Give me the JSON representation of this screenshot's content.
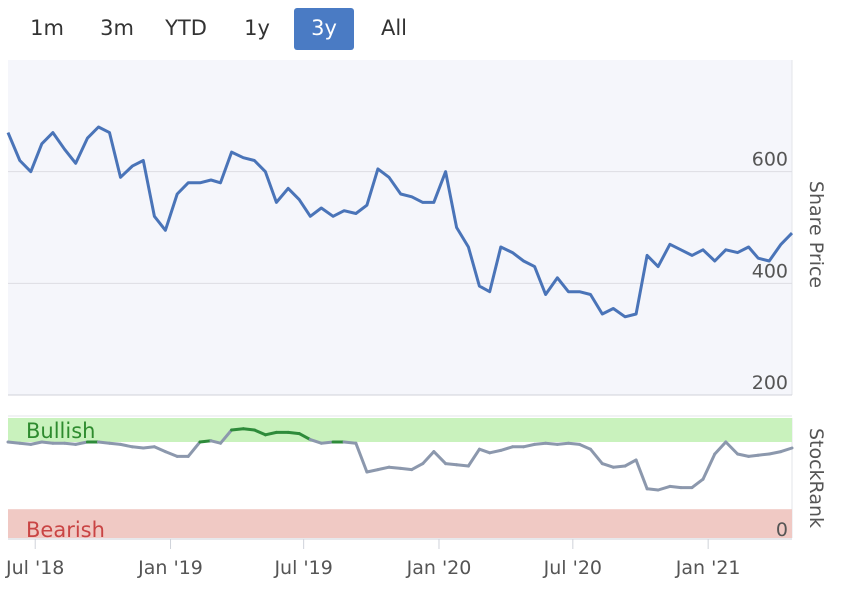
{
  "range_selector": {
    "buttons": [
      "1m",
      "3m",
      "YTD",
      "1y",
      "3y",
      "All"
    ],
    "active": "3y"
  },
  "colors": {
    "price_line": "#4a74b8",
    "bullish_fill": "#c9f2bd",
    "bearish_fill": "#f0c9c4",
    "bullish_text": "#2e8b2e",
    "bearish_text": "#c94444",
    "rank_line": "#8c98ad",
    "rank_bullish_line": "#2e8b3a",
    "plot_bg": "#f5f6fb",
    "grid": "#dcdde3"
  },
  "chart_data": [
    {
      "type": "line",
      "ylabel": "Share Price",
      "ylim": [
        200,
        800
      ],
      "yticks": [
        200,
        400,
        600
      ],
      "grid": true,
      "x": [
        "2018-05-25",
        "2018-06-10",
        "2018-06-25",
        "2018-07-10",
        "2018-07-25",
        "2018-08-10",
        "2018-08-25",
        "2018-09-10",
        "2018-09-25",
        "2018-10-10",
        "2018-10-25",
        "2018-11-10",
        "2018-11-25",
        "2018-12-10",
        "2018-12-25",
        "2019-01-10",
        "2019-01-25",
        "2019-02-10",
        "2019-02-25",
        "2019-03-10",
        "2019-03-25",
        "2019-04-10",
        "2019-04-25",
        "2019-05-10",
        "2019-05-25",
        "2019-06-10",
        "2019-06-25",
        "2019-07-10",
        "2019-07-25",
        "2019-08-10",
        "2019-08-25",
        "2019-09-10",
        "2019-09-25",
        "2019-10-10",
        "2019-10-25",
        "2019-11-10",
        "2019-11-25",
        "2019-12-10",
        "2019-12-25",
        "2020-01-10",
        "2020-01-25",
        "2020-02-10",
        "2020-02-25",
        "2020-03-10",
        "2020-03-25",
        "2020-04-10",
        "2020-04-25",
        "2020-05-10",
        "2020-05-25",
        "2020-06-10",
        "2020-06-25",
        "2020-07-10",
        "2020-07-25",
        "2020-08-10",
        "2020-08-25",
        "2020-09-10",
        "2020-09-25",
        "2020-10-10",
        "2020-10-25",
        "2020-11-10",
        "2020-11-25",
        "2020-12-10",
        "2020-12-25",
        "2021-01-10",
        "2021-01-25",
        "2021-02-10",
        "2021-02-25",
        "2021-03-10",
        "2021-03-25",
        "2021-04-10",
        "2021-04-25"
      ],
      "series": [
        {
          "values": [
            670,
            620,
            600,
            650,
            670,
            640,
            615,
            660,
            680,
            670,
            590,
            610,
            620,
            520,
            495,
            560,
            580,
            580,
            585,
            580,
            635,
            625,
            620,
            600,
            545,
            570,
            550,
            520,
            535,
            520,
            530,
            525,
            540,
            605,
            590,
            560,
            555,
            545,
            545,
            600,
            500,
            465,
            395,
            385,
            465,
            455,
            440,
            430,
            380,
            410,
            385,
            385,
            380,
            345,
            355,
            340,
            345,
            450,
            430,
            470,
            460,
            450,
            460,
            440,
            460,
            455,
            465,
            445,
            440,
            470,
            490
          ]
        }
      ]
    },
    {
      "type": "area",
      "ylabel": "StockRank",
      "ylim": [
        0,
        100
      ],
      "yticks": [
        0
      ],
      "bands": [
        "Bullish",
        "Bearish"
      ],
      "x": [
        "2018-05-25",
        "2018-06-10",
        "2018-06-25",
        "2018-07-10",
        "2018-07-25",
        "2018-08-10",
        "2018-08-25",
        "2018-09-10",
        "2018-09-25",
        "2018-10-10",
        "2018-10-25",
        "2018-11-10",
        "2018-11-25",
        "2018-12-10",
        "2018-12-25",
        "2019-01-10",
        "2019-01-25",
        "2019-02-10",
        "2019-02-25",
        "2019-03-10",
        "2019-03-25",
        "2019-04-10",
        "2019-04-25",
        "2019-05-10",
        "2019-05-25",
        "2019-06-10",
        "2019-06-25",
        "2019-07-10",
        "2019-07-25",
        "2019-08-10",
        "2019-08-25",
        "2019-09-10",
        "2019-09-25",
        "2019-10-10",
        "2019-10-25",
        "2019-11-10",
        "2019-11-25",
        "2019-12-10",
        "2019-12-25",
        "2020-01-10",
        "2020-01-25",
        "2020-02-10",
        "2020-02-25",
        "2020-03-10",
        "2020-03-25",
        "2020-04-10",
        "2020-04-25",
        "2020-05-10",
        "2020-05-25",
        "2020-06-10",
        "2020-06-25",
        "2020-07-10",
        "2020-07-25",
        "2020-08-10",
        "2020-08-25",
        "2020-09-10",
        "2020-09-25",
        "2020-10-10",
        "2020-10-25",
        "2020-11-10",
        "2020-11-25",
        "2020-12-10",
        "2020-12-25",
        "2021-01-10",
        "2021-01-25",
        "2021-02-10",
        "2021-02-25",
        "2021-03-10",
        "2021-03-25",
        "2021-04-10",
        "2021-04-25"
      ],
      "series": [
        {
          "values": [
            80,
            79,
            78,
            80,
            79,
            79,
            78,
            80,
            80,
            79,
            78,
            76,
            75,
            76,
            72,
            68,
            68,
            80,
            81,
            79,
            90,
            91,
            90,
            86,
            88,
            88,
            87,
            82,
            79,
            80,
            80,
            79,
            55,
            57,
            59,
            58,
            57,
            62,
            72,
            62,
            61,
            60,
            74,
            71,
            73,
            76,
            76,
            78,
            79,
            78,
            79,
            78,
            74,
            62,
            59,
            60,
            65,
            41,
            40,
            43,
            42,
            42,
            49,
            70,
            80,
            70,
            68,
            69,
            70,
            72,
            75
          ]
        }
      ]
    }
  ],
  "x_axis": {
    "ticks": [
      "Jul '18",
      "Jan '19",
      "Jul '19",
      "Jan '20",
      "Jul '20",
      "Jan '21"
    ],
    "tick_dates": [
      "2018-07-01",
      "2019-01-01",
      "2019-07-01",
      "2020-01-01",
      "2020-07-01",
      "2021-01-01"
    ]
  }
}
